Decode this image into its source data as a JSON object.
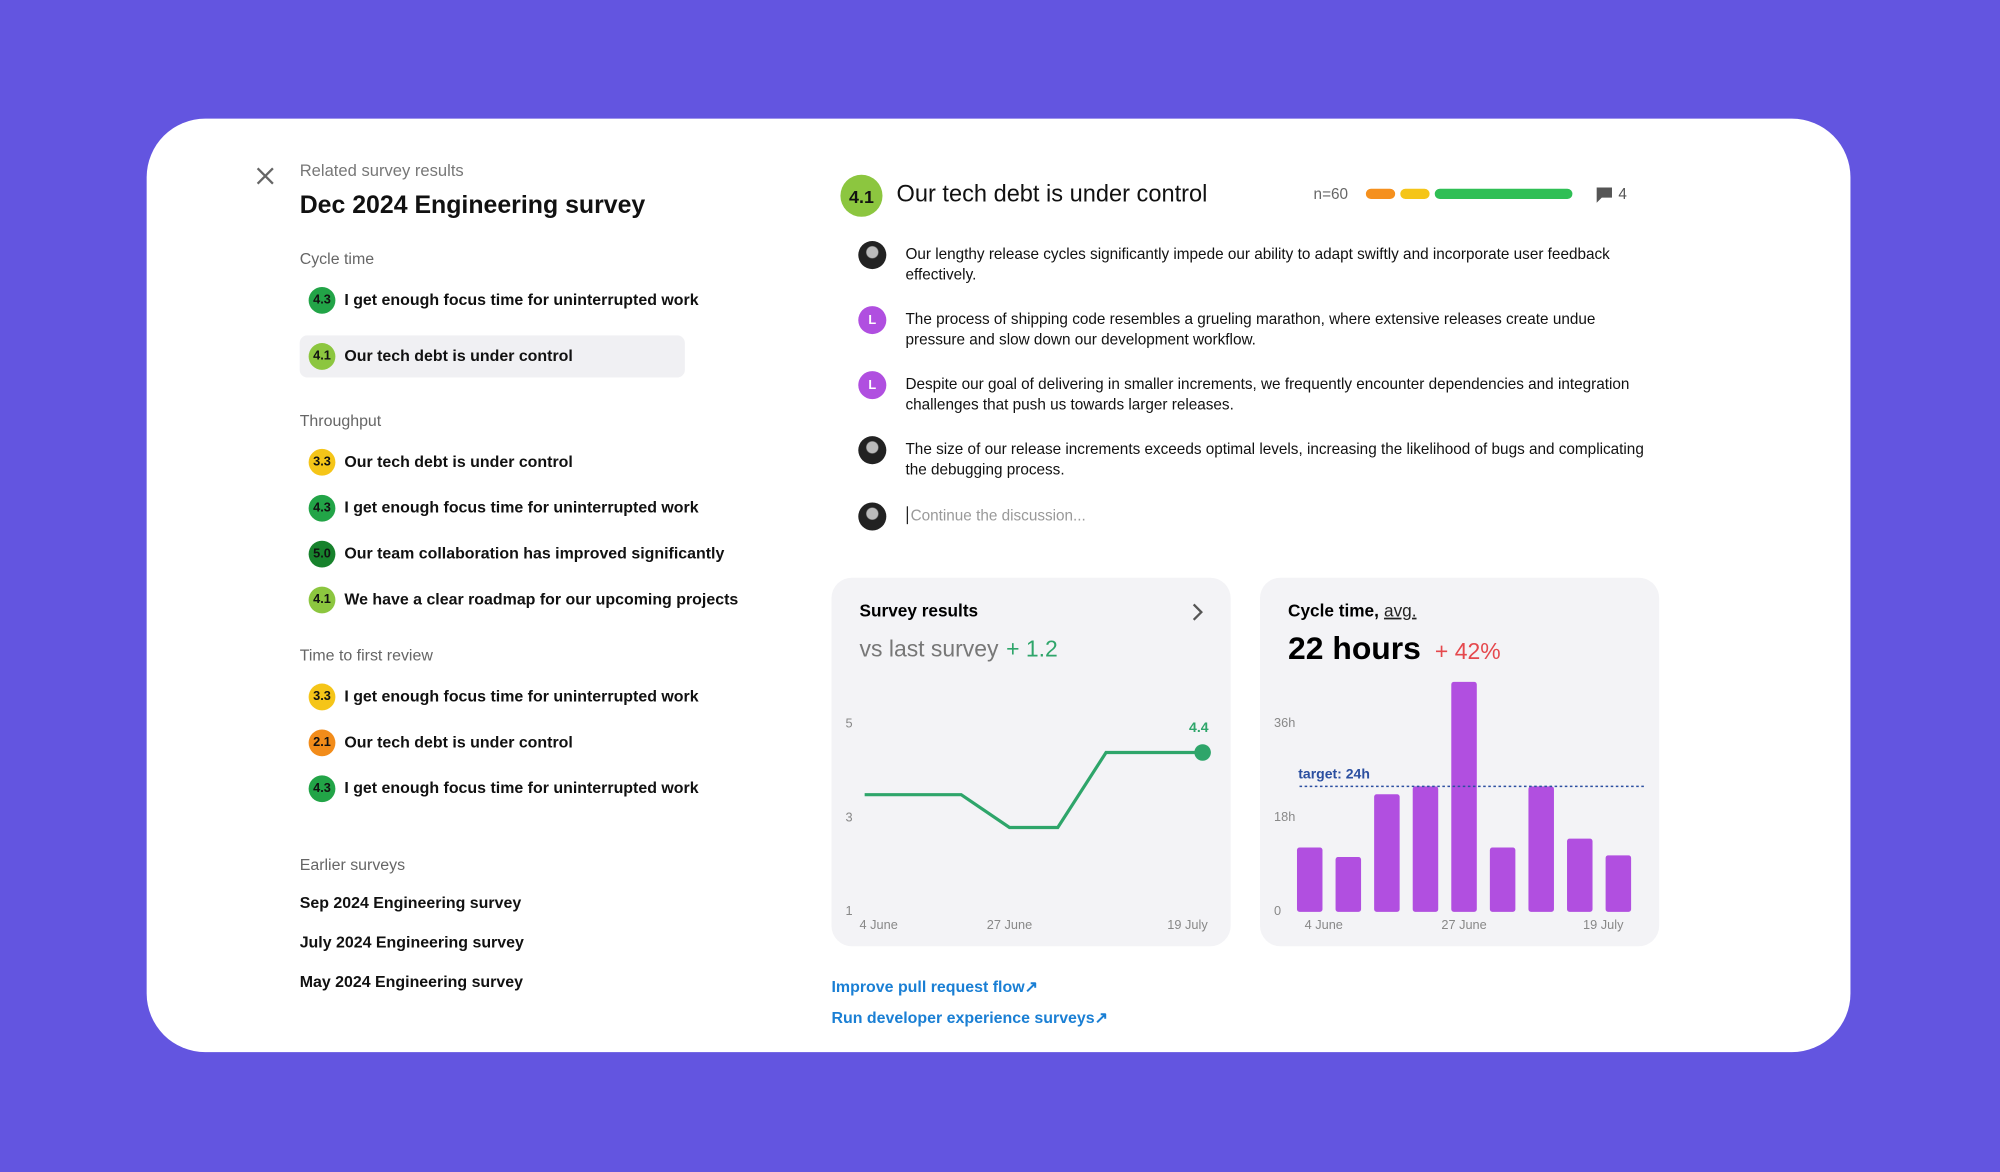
{
  "sidebar": {
    "eyebrow": "Related survey results",
    "title": "Dec 2024 Engineering survey",
    "groups": [
      {
        "name": "Cycle time",
        "items": [
          {
            "score": "4.3",
            "color": "#22a447",
            "text": "I get enough focus time for uninterrupted work"
          },
          {
            "score": "4.1",
            "color": "#8cc63f",
            "text": "Our tech debt is under control",
            "selected": true
          }
        ]
      },
      {
        "name": "Throughput",
        "items": [
          {
            "score": "3.3",
            "color": "#f5c518",
            "text": "Our tech debt is under control"
          },
          {
            "score": "4.3",
            "color": "#22a447",
            "text": "I get enough focus time for uninterrupted work"
          },
          {
            "score": "5.0",
            "color": "#17822c",
            "text": "Our team collaboration has improved significantly"
          },
          {
            "score": "4.1",
            "color": "#8cc63f",
            "text": "We have a clear roadmap for our upcoming projects"
          }
        ]
      },
      {
        "name": "Time to first review",
        "items": [
          {
            "score": "3.3",
            "color": "#f5c518",
            "text": "I get enough focus time for uninterrupted work"
          },
          {
            "score": "2.1",
            "color": "#f28c1a",
            "text": "Our tech debt is under control"
          },
          {
            "score": "4.3",
            "color": "#22a447",
            "text": "I get enough focus time for uninterrupted work"
          }
        ]
      }
    ],
    "earlier_label": "Earlier surveys",
    "earlier": [
      "Sep 2024 Engineering survey",
      "July 2024 Engineering survey",
      "May 2024 Engineering survey"
    ]
  },
  "question": {
    "score": "4.1",
    "color": "#8cc63f",
    "title": "Our tech debt is under control",
    "n": "n=60",
    "distribution": [
      {
        "value": 15,
        "color": "#f5901e"
      },
      {
        "value": 15,
        "color": "#f5c518"
      },
      {
        "value": 70,
        "color": "#2fbf55"
      }
    ],
    "comment_count": "4"
  },
  "comments": [
    {
      "text": "Our lengthy release cycles significantly impede our ability to adapt swiftly and incorporate user feedback effectively."
    },
    {
      "initial": "L",
      "text": "The process of shipping code resembles a grueling marathon, where extensive releases create undue pressure and slow down our development workflow."
    },
    {
      "initial": "L",
      "text": "Despite our goal of delivering in smaller increments, we frequently encounter dependencies and integration challenges that push us towards larger releases."
    },
    {
      "text": "The size of our release increments exceeds optimal levels, increasing the likelihood of bugs and complicating the debugging process."
    }
  ],
  "input_placeholder": "Continue the discussion...",
  "charts": [
    {
      "type": "line",
      "title": "Survey results",
      "subtitle": "vs last survey",
      "delta": "+ 1.2",
      "color": "#2ea56a",
      "categories": [
        "4 June",
        null,
        null,
        "27 June",
        null,
        null,
        null,
        "19 July"
      ],
      "values": [
        3.5,
        3.5,
        3.5,
        2.8,
        2.8,
        4.4,
        4.4,
        4.4
      ],
      "ylim": [
        1,
        5
      ],
      "yticks": [
        1,
        3,
        5
      ]
    },
    {
      "type": "bar",
      "title": "Cycle time,",
      "title_underlined": "avg.",
      "headline": "22 hours",
      "delta": "+ 42%",
      "color": "#b14fe0",
      "categories": [
        "4 June",
        null,
        null,
        null,
        "27 June",
        null,
        null,
        null,
        "19 July"
      ],
      "values": [
        12.3,
        10.5,
        22.5,
        24,
        44,
        12.3,
        24,
        14,
        10.8
      ],
      "ylim": [
        0,
        46
      ],
      "yticks": [
        0,
        {
          "value": 18,
          "label": "18h"
        },
        {
          "value": 36,
          "label": "36h"
        }
      ],
      "target": {
        "value": 24,
        "label": "target: 24h"
      }
    }
  ],
  "links": [
    "Improve pull request flow↗",
    "Run developer experience surveys↗"
  ]
}
